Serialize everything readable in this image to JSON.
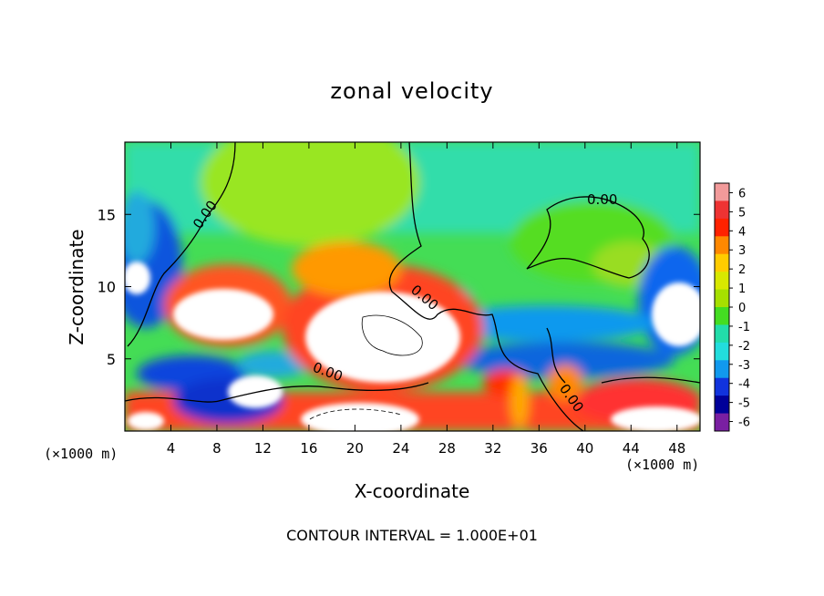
{
  "chart_data": {
    "type": "heatmap",
    "title": "zonal velocity",
    "xlabel": "X-coordinate",
    "ylabel": "Z-coordinate",
    "x_unit_label": "(×1000 m)",
    "x_unit_label_right": "(×1000 m)",
    "xlim": [
      0,
      50
    ],
    "ylim": [
      0,
      20
    ],
    "x_ticks": [
      4,
      8,
      12,
      16,
      20,
      24,
      28,
      32,
      36,
      40,
      44,
      48
    ],
    "y_ticks": [
      5,
      10,
      15
    ],
    "colorbar": {
      "ticks": [
        6,
        5,
        4,
        3,
        2,
        1,
        0,
        -1,
        -2,
        -3,
        -4,
        -5,
        -6
      ],
      "colors": [
        "#f29a9a",
        "#ee3333",
        "#ff2200",
        "#ff8800",
        "#ffcc00",
        "#d8e800",
        "#a6e000",
        "#44dd22",
        "#22ddaa",
        "#22dddd",
        "#1199ee",
        "#1133dd",
        "#000099",
        "#7a1fa2"
      ]
    },
    "contour_labels": [
      "0.00",
      "0.00",
      "0.00",
      "0.00",
      "0.00"
    ],
    "footer": "CONTOUR INTERVAL = 1.000E+01"
  }
}
